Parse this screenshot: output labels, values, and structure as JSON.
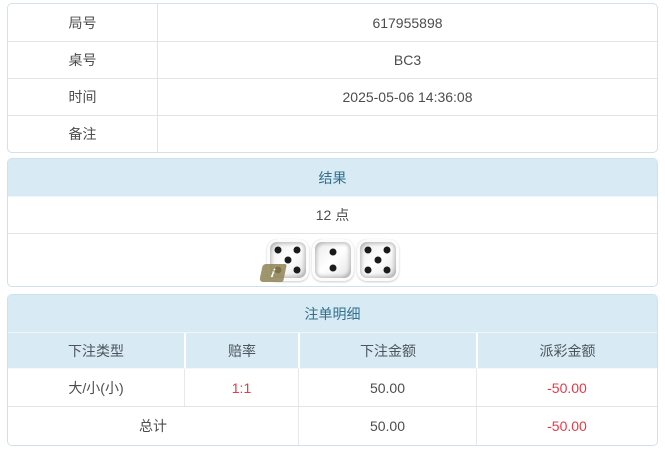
{
  "info_table": {
    "rows": [
      {
        "label": "局号",
        "value": "617955898"
      },
      {
        "label": "桌号",
        "value": "BC3"
      },
      {
        "label": "时间",
        "value": "2025-05-06 14:36:08"
      },
      {
        "label": "备注",
        "value": ""
      }
    ]
  },
  "result_panel": {
    "title": "结果",
    "points": "12 点",
    "dice": [
      5,
      2,
      5
    ],
    "info_badge": "i"
  },
  "bets_panel": {
    "title": "注单明细",
    "columns": [
      "下注类型",
      "赔率",
      "下注金额",
      "派彩金额"
    ],
    "rows": [
      {
        "type": "大/小(小)",
        "odds": "1:1",
        "bet_amount": "50.00",
        "payout": "-50.00"
      }
    ],
    "total": {
      "label": "总计",
      "bet_amount": "50.00",
      "payout": "-50.00"
    }
  },
  "colors": {
    "panel_header_bg": "#d8eaf3",
    "panel_header_text": "#31708f",
    "panel_border": "#cde2ec",
    "negative_text": "#e73948",
    "grid_line": "#e3e3e3"
  }
}
